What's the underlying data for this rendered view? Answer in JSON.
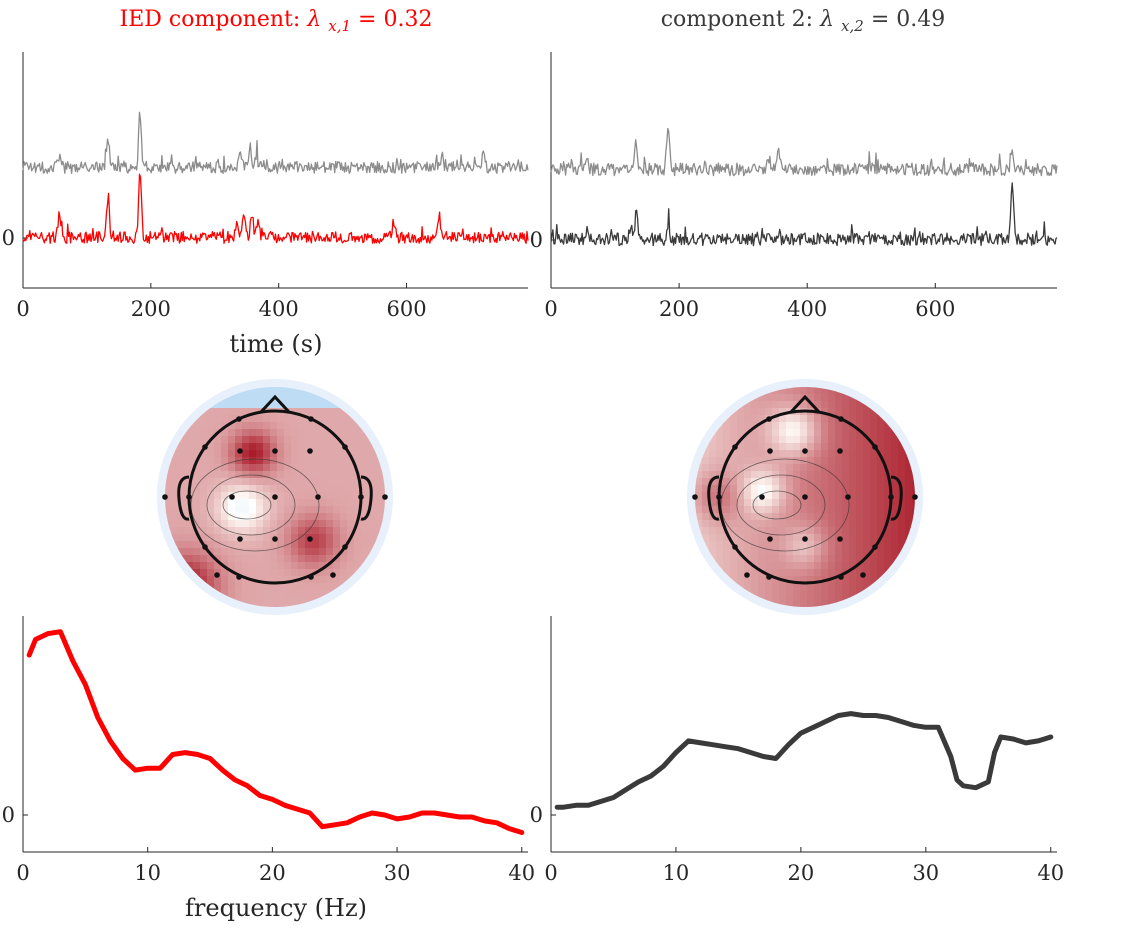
{
  "components": [
    {
      "title_text": "IED component: ",
      "title_symbol": "λ",
      "title_subscript": "x,1",
      "title_value": " = 0.32",
      "color": "#ff0000",
      "topomap_seed": 7
    },
    {
      "title_text": "component 2: ",
      "title_symbol": "λ",
      "title_subscript": "x,2",
      "title_value": " = 0.49",
      "color": "#3a3a3a",
      "topomap_seed": 11
    }
  ],
  "time_xlabel": "time (s)",
  "freq_xlabel": "frequency (Hz)",
  "chart_data": [
    {
      "type": "line",
      "panel": "time-left",
      "x_range": [
        0,
        790
      ],
      "x_ticks": [
        0,
        200,
        400,
        600
      ],
      "y_ticks": [
        0
      ],
      "series": [
        {
          "color": "#8c8c8c",
          "offset": 1,
          "peaks": [
            [
              57,
              0.35
            ],
            [
              133,
              0.9
            ],
            [
              183,
              1.55
            ],
            [
              340,
              0.5
            ],
            [
              355,
              0.6
            ],
            [
              365,
              0.4
            ],
            [
              655,
              0.35
            ],
            [
              720,
              0.35
            ]
          ]
        },
        {
          "color": "#ff0000",
          "offset": 0,
          "peaks": [
            [
              57,
              0.75
            ],
            [
              133,
              1.2
            ],
            [
              183,
              2.0
            ],
            [
              335,
              0.55
            ],
            [
              345,
              0.75
            ],
            [
              358,
              0.65
            ],
            [
              368,
              0.45
            ],
            [
              580,
              0.45
            ],
            [
              650,
              0.6
            ]
          ]
        }
      ]
    },
    {
      "type": "line",
      "panel": "time-right",
      "x_range": [
        0,
        790
      ],
      "x_ticks": [
        0,
        200,
        400,
        600
      ],
      "y_ticks": [
        0
      ],
      "series": [
        {
          "color": "#8c8c8c",
          "offset": 1,
          "peaks": [
            [
              57,
              0.2
            ],
            [
              133,
              0.75
            ],
            [
              183,
              1.3
            ],
            [
              340,
              0.35
            ],
            [
              355,
              0.55
            ],
            [
              655,
              0.25
            ],
            [
              720,
              0.65
            ]
          ]
        },
        {
          "color": "#3a3a3a",
          "offset": 0,
          "peaks": [
            [
              57,
              0.3
            ],
            [
              133,
              0.7
            ],
            [
              183,
              0.45
            ],
            [
              355,
              0.2
            ],
            [
              720,
              1.7
            ]
          ]
        }
      ]
    },
    {
      "type": "line",
      "panel": "freq-left",
      "x_range": [
        0,
        40.5
      ],
      "x_ticks": [
        0,
        10,
        20,
        30,
        40
      ],
      "y_ticks": [
        0
      ],
      "series": [
        {
          "color": "#ff0000",
          "x": [
            0.5,
            1,
            2,
            3,
            4,
            5,
            6,
            7,
            8,
            8.5,
            9,
            10,
            11,
            12,
            13,
            14,
            15,
            16,
            17,
            18,
            19,
            20,
            21,
            22,
            23,
            24,
            25,
            26,
            27,
            28,
            29,
            30,
            31,
            32,
            33,
            34,
            35,
            36,
            37,
            38,
            39,
            40
          ],
          "y": [
            0.82,
            0.9,
            0.93,
            0.94,
            0.79,
            0.67,
            0.5,
            0.38,
            0.29,
            0.26,
            0.23,
            0.24,
            0.24,
            0.31,
            0.32,
            0.31,
            0.29,
            0.23,
            0.18,
            0.15,
            0.1,
            0.08,
            0.05,
            0.03,
            0.01,
            -0.06,
            -0.05,
            -0.04,
            -0.01,
            0.01,
            0.0,
            -0.02,
            -0.01,
            0.01,
            0.01,
            0.0,
            -0.01,
            -0.01,
            -0.03,
            -0.04,
            -0.07,
            -0.09
          ]
        }
      ]
    },
    {
      "type": "line",
      "panel": "freq-right",
      "x_range": [
        0,
        40.5
      ],
      "x_ticks": [
        0,
        10,
        20,
        30,
        40
      ],
      "y_ticks": [
        0
      ],
      "series": [
        {
          "color": "#3a3a3a",
          "x": [
            0.5,
            1,
            2,
            3,
            4,
            5,
            6,
            7,
            8,
            9,
            10,
            11,
            12,
            13,
            14,
            15,
            16,
            17,
            18,
            19,
            20,
            21,
            22,
            23,
            24,
            25,
            26,
            27,
            28,
            29,
            30,
            31,
            32,
            32.5,
            33,
            34,
            35,
            35.5,
            36,
            37,
            38,
            39,
            40
          ],
          "y": [
            0.04,
            0.04,
            0.05,
            0.05,
            0.07,
            0.09,
            0.13,
            0.17,
            0.2,
            0.25,
            0.32,
            0.38,
            0.37,
            0.36,
            0.35,
            0.34,
            0.32,
            0.3,
            0.29,
            0.36,
            0.42,
            0.45,
            0.48,
            0.51,
            0.52,
            0.51,
            0.51,
            0.5,
            0.48,
            0.46,
            0.45,
            0.45,
            0.3,
            0.18,
            0.15,
            0.14,
            0.17,
            0.32,
            0.4,
            0.39,
            0.37,
            0.38,
            0.4
          ]
        }
      ]
    }
  ]
}
